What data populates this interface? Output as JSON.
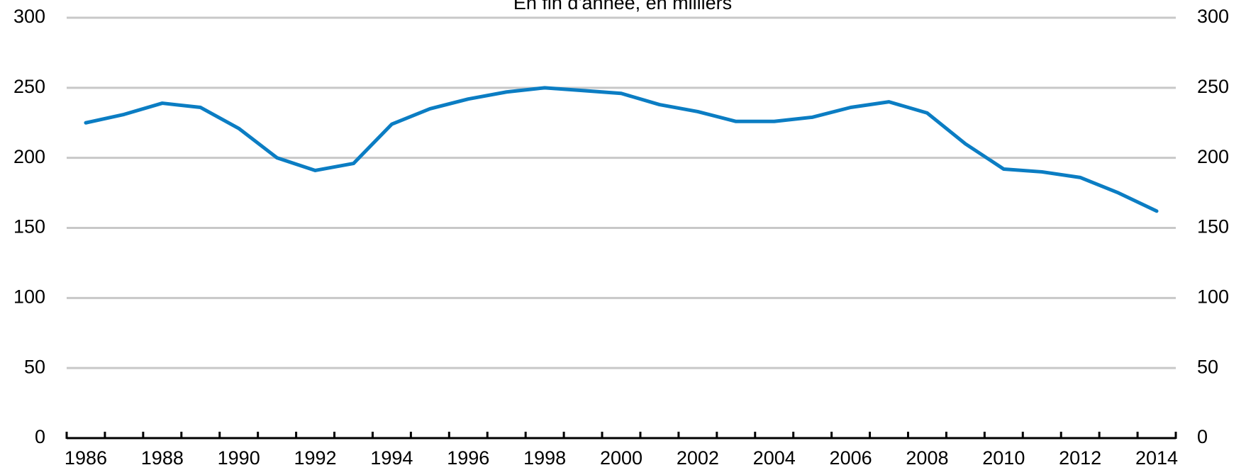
{
  "chart_data": {
    "type": "line",
    "subtitle": "En fin d'année, en milliers",
    "categories": [
      "1986",
      null,
      "1988",
      null,
      "1990",
      null,
      "1992",
      null,
      "1994",
      null,
      "1996",
      null,
      "1998",
      null,
      "2000",
      null,
      "2002",
      null,
      "2004",
      null,
      "2006",
      null,
      "2008",
      null,
      "2010",
      null,
      "2012",
      null,
      "2014"
    ],
    "series": [
      {
        "name": null,
        "color": "#0b7dc3",
        "values": [
          225,
          231,
          239,
          236,
          221,
          200,
          191,
          196,
          224,
          235,
          242,
          247,
          250,
          248,
          246,
          238,
          233,
          226,
          226,
          229,
          236,
          240,
          232,
          210,
          192,
          190,
          186,
          175,
          162
        ]
      }
    ],
    "ylim": [
      0,
      300
    ],
    "yticks": [
      0,
      50,
      100,
      150,
      200,
      250,
      300
    ],
    "y2lim": [
      0,
      300
    ],
    "y2ticks": [
      0,
      50,
      100,
      150,
      200,
      250,
      300
    ],
    "grid": true
  }
}
